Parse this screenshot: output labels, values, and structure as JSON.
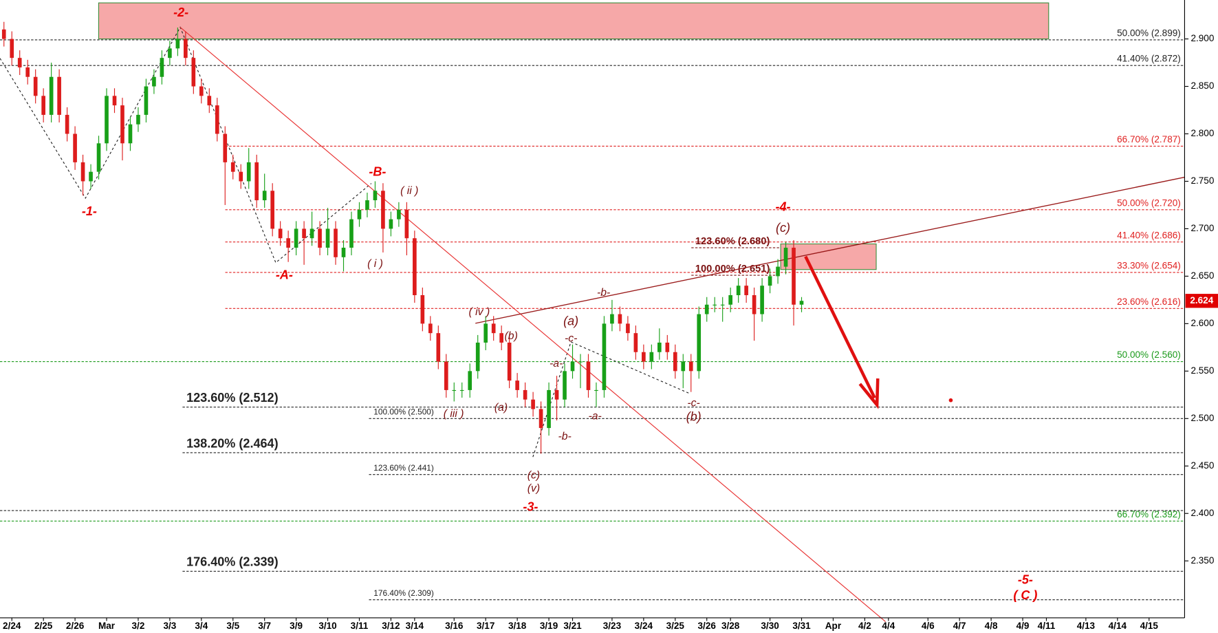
{
  "chart_data": {
    "type": "candlestick",
    "categories": [
      null,
      "2/24",
      null,
      null,
      null,
      "2/25",
      null,
      null,
      null,
      "2/26",
      null,
      null,
      null,
      "Mar",
      null,
      null,
      null,
      "3/2",
      null,
      null,
      null,
      "3/3",
      null,
      null,
      null,
      "3/4",
      null,
      null,
      null,
      "3/5",
      null,
      null,
      null,
      "3/7",
      null,
      null,
      null,
      "3/9",
      null,
      null,
      null,
      "3/10",
      null,
      null,
      null,
      "3/11",
      null,
      null,
      null,
      "3/12",
      null,
      null,
      "3/14",
      null,
      null,
      null,
      null,
      "3/16",
      null,
      null,
      null,
      "3/17",
      null,
      null,
      null,
      "3/18",
      null,
      null,
      null,
      "3/19",
      null,
      null,
      "3/21",
      null,
      null,
      null,
      null,
      "3/23",
      null,
      null,
      null,
      "3/24",
      null,
      null,
      null,
      "3/25",
      null,
      null,
      null,
      "3/26",
      null,
      null,
      "3/28",
      null,
      null,
      null,
      null,
      "3/30",
      null,
      null,
      null,
      "3/31",
      null,
      null,
      null,
      "Apr",
      null,
      null,
      null,
      "4/2",
      null,
      null,
      "4/4",
      null,
      null,
      null,
      null,
      "4/6",
      null,
      null,
      null,
      "4/7",
      null,
      null,
      null,
      "4/8",
      null,
      null,
      null,
      "4/9",
      null,
      null,
      "4/11",
      null,
      null,
      null,
      null,
      "4/13",
      null,
      null,
      null,
      "4/14",
      null,
      null,
      null,
      "4/15",
      null,
      null,
      null,
      null
    ],
    "open": [
      2.91,
      2.9,
      2.88,
      2.87,
      2.86,
      2.84,
      2.82,
      2.86,
      2.82,
      2.8,
      2.77,
      2.75,
      2.76,
      2.79,
      2.84,
      2.83,
      2.79,
      2.81,
      2.82,
      2.85,
      2.86,
      2.88,
      2.89,
      2.9,
      2.88,
      2.85,
      2.84,
      2.83,
      2.8,
      2.77,
      2.76,
      2.75,
      2.77,
      2.73,
      2.74,
      2.7,
      2.69,
      2.68,
      2.7,
      2.69,
      2.7,
      2.68,
      2.7,
      2.67,
      2.68,
      2.71,
      2.72,
      2.73,
      2.74,
      2.7,
      2.71,
      2.72,
      2.69,
      2.63,
      2.6,
      2.59,
      2.56,
      2.53,
      2.53,
      2.53,
      2.55,
      2.58,
      2.6,
      2.59,
      2.58,
      2.54,
      2.53,
      2.52,
      2.51,
      2.49,
      2.53,
      2.52,
      2.55,
      2.56,
      2.56,
      2.53,
      2.53,
      2.6,
      2.61,
      2.6,
      2.59,
      2.57,
      2.56,
      2.57,
      2.58,
      2.57,
      2.55,
      2.56,
      2.55,
      2.61,
      2.62,
      2.62,
      2.62,
      2.63,
      2.64,
      2.63,
      2.61,
      2.64,
      2.65,
      2.66,
      2.68,
      2.62,
      null,
      null,
      null,
      null,
      null,
      null,
      null,
      null,
      null,
      null,
      null,
      null,
      null,
      null,
      null,
      null,
      null,
      null,
      null,
      null,
      null,
      null,
      null,
      null,
      null,
      null,
      null,
      null,
      null,
      null,
      null,
      null,
      null,
      null,
      null,
      null,
      null,
      null,
      null,
      null,
      null,
      null,
      null,
      null,
      null,
      null,
      null,
      null
    ],
    "high": [
      2.918,
      2.908,
      2.888,
      2.878,
      2.868,
      2.848,
      2.875,
      2.868,
      2.828,
      2.808,
      2.778,
      2.768,
      2.798,
      2.848,
      2.848,
      2.838,
      2.818,
      2.828,
      2.858,
      2.868,
      2.888,
      2.898,
      2.912,
      2.908,
      2.888,
      2.858,
      2.848,
      2.838,
      2.808,
      2.778,
      2.768,
      2.785,
      2.778,
      2.758,
      2.748,
      2.708,
      2.698,
      2.708,
      2.708,
      2.718,
      2.708,
      2.722,
      2.708,
      2.688,
      2.718,
      2.728,
      2.738,
      2.75,
      2.748,
      2.718,
      2.728,
      2.728,
      2.698,
      2.638,
      2.608,
      2.598,
      2.568,
      2.538,
      2.538,
      2.558,
      2.588,
      2.608,
      2.608,
      2.598,
      2.588,
      2.548,
      2.538,
      2.528,
      2.518,
      2.538,
      2.545,
      2.558,
      2.578,
      2.568,
      2.568,
      2.538,
      2.608,
      2.625,
      2.618,
      2.608,
      2.598,
      2.578,
      2.578,
      2.595,
      2.588,
      2.578,
      2.568,
      2.568,
      2.618,
      2.628,
      2.628,
      2.628,
      2.638,
      2.648,
      2.648,
      2.638,
      2.648,
      2.658,
      2.668,
      2.686,
      2.688,
      2.628,
      null,
      null,
      null,
      null,
      null,
      null,
      null,
      null,
      null,
      null,
      null,
      null,
      null,
      null,
      null,
      null,
      null,
      null,
      null,
      null,
      null,
      null,
      null,
      null,
      null,
      null,
      null,
      null,
      null,
      null,
      null,
      null,
      null,
      null,
      null,
      null,
      null,
      null,
      null,
      null,
      null,
      null,
      null,
      null,
      null,
      null,
      null,
      null
    ],
    "low": [
      2.892,
      2.872,
      2.862,
      2.852,
      2.832,
      2.812,
      2.812,
      2.812,
      2.792,
      2.762,
      2.735,
      2.742,
      2.752,
      2.782,
      2.822,
      2.772,
      2.782,
      2.802,
      2.812,
      2.842,
      2.852,
      2.872,
      2.882,
      2.872,
      2.842,
      2.832,
      2.822,
      2.792,
      2.725,
      2.752,
      2.742,
      2.742,
      2.722,
      2.722,
      2.692,
      2.682,
      2.665,
      2.672,
      2.662,
      2.682,
      2.672,
      2.672,
      2.662,
      2.655,
      2.672,
      2.702,
      2.712,
      2.722,
      2.675,
      2.692,
      2.702,
      2.672,
      2.622,
      2.592,
      2.582,
      2.552,
      2.522,
      2.518,
      2.522,
      2.522,
      2.542,
      2.572,
      2.582,
      2.572,
      2.532,
      2.522,
      2.512,
      2.502,
      2.463,
      2.482,
      2.498,
      2.512,
      2.542,
      2.532,
      2.522,
      2.512,
      2.522,
      2.592,
      2.592,
      2.582,
      2.562,
      2.552,
      2.552,
      2.562,
      2.562,
      2.542,
      2.532,
      2.528,
      2.542,
      2.602,
      2.612,
      2.602,
      2.612,
      2.622,
      2.622,
      2.582,
      2.602,
      2.632,
      2.642,
      2.652,
      2.598,
      2.612,
      null,
      null,
      null,
      null,
      null,
      null,
      null,
      null,
      null,
      null,
      null,
      null,
      null,
      null,
      null,
      null,
      null,
      null,
      null,
      null,
      null,
      null,
      null,
      null,
      null,
      null,
      null,
      null,
      null,
      null,
      null,
      null,
      null,
      null,
      null,
      null,
      null,
      null,
      null,
      null,
      null,
      null,
      null,
      null,
      null,
      null,
      null,
      null
    ],
    "close": [
      2.9,
      2.88,
      2.87,
      2.86,
      2.84,
      2.82,
      2.86,
      2.82,
      2.8,
      2.77,
      2.75,
      2.76,
      2.79,
      2.84,
      2.83,
      2.79,
      2.81,
      2.82,
      2.85,
      2.86,
      2.88,
      2.89,
      2.9,
      2.88,
      2.85,
      2.84,
      2.83,
      2.8,
      2.77,
      2.76,
      2.75,
      2.77,
      2.73,
      2.74,
      2.7,
      2.69,
      2.68,
      2.7,
      2.69,
      2.7,
      2.68,
      2.7,
      2.67,
      2.68,
      2.71,
      2.72,
      2.73,
      2.74,
      2.7,
      2.71,
      2.72,
      2.69,
      2.63,
      2.6,
      2.59,
      2.56,
      2.53,
      2.53,
      2.53,
      2.55,
      2.58,
      2.6,
      2.59,
      2.58,
      2.54,
      2.53,
      2.52,
      2.51,
      2.49,
      2.53,
      2.52,
      2.55,
      2.56,
      2.56,
      2.53,
      2.53,
      2.6,
      2.61,
      2.6,
      2.59,
      2.57,
      2.56,
      2.57,
      2.58,
      2.57,
      2.55,
      2.56,
      2.55,
      2.61,
      2.62,
      2.62,
      2.62,
      2.63,
      2.64,
      2.63,
      2.61,
      2.64,
      2.65,
      2.66,
      2.68,
      2.62,
      2.624,
      null,
      null,
      null,
      null,
      null,
      null,
      null,
      null,
      null,
      null,
      null,
      null,
      null,
      null,
      null,
      null,
      null,
      null,
      null,
      null,
      null,
      null,
      null,
      null,
      null,
      null,
      null,
      null,
      null,
      null,
      null,
      null,
      null,
      null,
      null,
      null,
      null,
      null,
      null,
      null,
      null,
      null,
      null,
      null,
      null,
      null,
      null,
      null
    ],
    "up_color": "#18a018",
    "down_color": "#dd1c1c",
    "last_price": 2.624,
    "ylim": [
      2.29,
      2.941
    ],
    "yticks": [
      {
        "value": 2.35,
        "label": "2.350"
      },
      {
        "value": 2.4,
        "label": "2.400"
      },
      {
        "value": 2.45,
        "label": "2.450"
      },
      {
        "value": 2.5,
        "label": "2.500"
      },
      {
        "value": 2.55,
        "label": "2.550"
      },
      {
        "value": 2.6,
        "label": "2.600"
      },
      {
        "value": 2.65,
        "label": "2.650"
      },
      {
        "value": 2.7,
        "label": "2.700"
      },
      {
        "value": 2.75,
        "label": "2.750"
      },
      {
        "value": 2.8,
        "label": "2.800"
      },
      {
        "value": 2.85,
        "label": "2.850"
      },
      {
        "value": 2.9,
        "label": "2.900"
      }
    ],
    "zones": [
      {
        "from": 2.9,
        "to": 2.938,
        "kind": "top"
      },
      {
        "from": 2.657,
        "to": 2.684,
        "kind": "target"
      }
    ],
    "levels": [
      {
        "value": 2.899,
        "label": "50.00% (2.899)",
        "kind": "full",
        "color": "#222222"
      },
      {
        "value": 2.872,
        "label": "41.40% (2.872)",
        "kind": "full",
        "color": "#222222"
      },
      {
        "value": 2.787,
        "label": "66.70% (2.787)",
        "kind": "fib",
        "color": "#e02020"
      },
      {
        "value": 2.72,
        "label": "50.00% (2.720)",
        "kind": "fib",
        "color": "#e02020"
      },
      {
        "value": 2.686,
        "label": "41.40% (2.686)",
        "kind": "fib",
        "color": "#e02020"
      },
      {
        "value": 2.654,
        "label": "33.30% (2.654)",
        "kind": "fib",
        "color": "#e02020"
      },
      {
        "value": 2.616,
        "label": "23.60% (2.616)",
        "kind": "fib",
        "color": "#e02020"
      },
      {
        "value": 2.56,
        "label": "50.00% (2.560)",
        "kind": "full",
        "color": "#1a9a1a"
      },
      {
        "value": 2.392,
        "label": "66.70% (2.392)",
        "kind": "full",
        "color": "#1a9a1a"
      },
      {
        "value": 2.403,
        "kind": "full",
        "color": "#222222"
      },
      {
        "value": 2.512,
        "label": "123.60% (2.512)",
        "kind": "proj-bold",
        "color": "#222222"
      },
      {
        "value": 2.464,
        "label": "138.20% (2.464)",
        "kind": "proj-bold",
        "color": "#222222"
      },
      {
        "value": 2.339,
        "label": "176.40% (2.339)",
        "kind": "proj-bold",
        "color": "#222222"
      },
      {
        "value": 2.5,
        "label": "100.00% (2.500)",
        "kind": "proj-small",
        "color": "#222222"
      },
      {
        "value": 2.441,
        "label": "123.60% (2.441)",
        "kind": "proj-small",
        "color": "#222222"
      },
      {
        "value": 2.309,
        "label": "176.40% (2.309)",
        "kind": "proj-small",
        "color": "#222222"
      },
      {
        "value": 2.68,
        "label": "123.60% (2.680)",
        "kind": "target",
        "color": "#7a1010"
      },
      {
        "value": 2.651,
        "label": "100.00% (2.651)",
        "kind": "target",
        "color": "#7a1010"
      }
    ],
    "wave_labels": [
      "-2-",
      "-1-",
      "-A-",
      "-B-",
      "-3-",
      "-4-",
      "-5-",
      "( C )",
      "( ii )",
      "( i )",
      "( iv )",
      "(b)",
      "( iii )",
      "(a)",
      "(c)",
      "(v)",
      "-a-",
      "-b-",
      "(a)",
      "-c-",
      "-a-",
      "-b-",
      "-c-",
      "(b)",
      "(c)"
    ]
  }
}
